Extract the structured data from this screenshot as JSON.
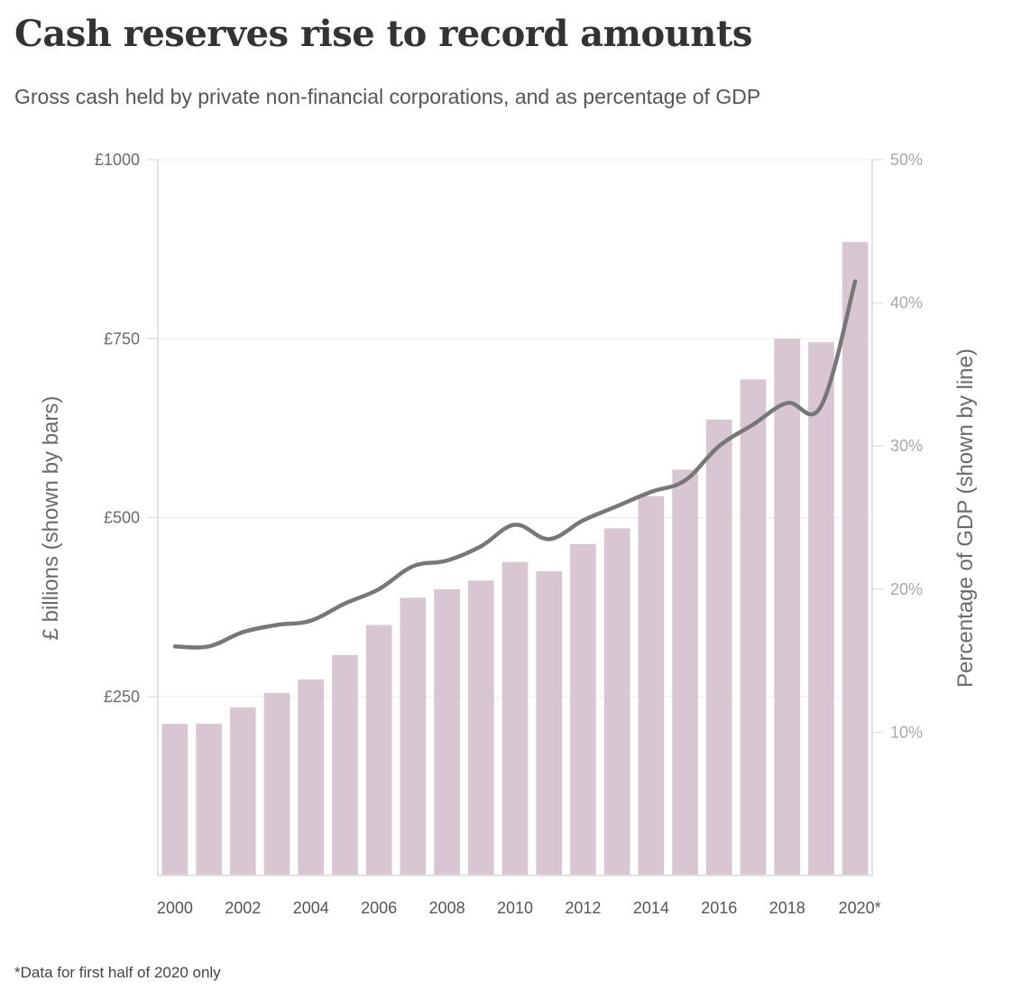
{
  "title": "Cash reserves rise to record amounts",
  "subtitle": "Gross cash held by private non-financial corporations, and as percentage of GDP",
  "footnote": "*Data for first half of 2020 only",
  "colors": {
    "bars": "#d8c6d3",
    "line": "#777777",
    "grid": "#ececec"
  },
  "chart_data": {
    "type": "bar",
    "categories": [
      "2000",
      "2001",
      "2002",
      "2003",
      "2004",
      "2005",
      "2006",
      "2007",
      "2008",
      "2009",
      "2010",
      "2011",
      "2012",
      "2013",
      "2014",
      "2015",
      "2016",
      "2017",
      "2018",
      "2019",
      "2020*"
    ],
    "series": [
      {
        "name": "£ billions",
        "type": "bar",
        "axis": "left",
        "values": [
          212,
          212,
          235,
          255,
          274,
          308,
          350,
          388,
          400,
          412,
          438,
          425,
          463,
          485,
          530,
          567,
          637,
          693,
          750,
          745,
          885
        ]
      },
      {
        "name": "Percentage of GDP",
        "type": "line",
        "axis": "right",
        "values": [
          16.0,
          16.0,
          17.0,
          17.5,
          17.8,
          19.0,
          20.0,
          21.6,
          22.0,
          23.0,
          24.5,
          23.5,
          24.8,
          25.8,
          26.8,
          27.6,
          30.0,
          31.5,
          33.0,
          32.8,
          41.5
        ]
      }
    ],
    "xlabel": "",
    "ylabel": "£ billions (shown by bars)",
    "ylabel_right": "Percentage of GDP (shown by line)",
    "ylim": [
      0,
      1000
    ],
    "ylim_right": [
      0,
      50
    ],
    "yticks": [
      {
        "value": 250,
        "label": "£250"
      },
      {
        "value": 500,
        "label": "£500"
      },
      {
        "value": 750,
        "label": "£750"
      },
      {
        "value": 1000,
        "label": "£1000"
      }
    ],
    "yticks_right": [
      {
        "value": 10,
        "label": "10%"
      },
      {
        "value": 20,
        "label": "20%"
      },
      {
        "value": 30,
        "label": "30%"
      },
      {
        "value": 40,
        "label": "40%"
      },
      {
        "value": 50,
        "label": "50%"
      }
    ],
    "xtick_labels": [
      "2000",
      "2002",
      "2004",
      "2006",
      "2008",
      "2010",
      "2012",
      "2014",
      "2016",
      "2018",
      "2020*"
    ],
    "grid": true
  }
}
